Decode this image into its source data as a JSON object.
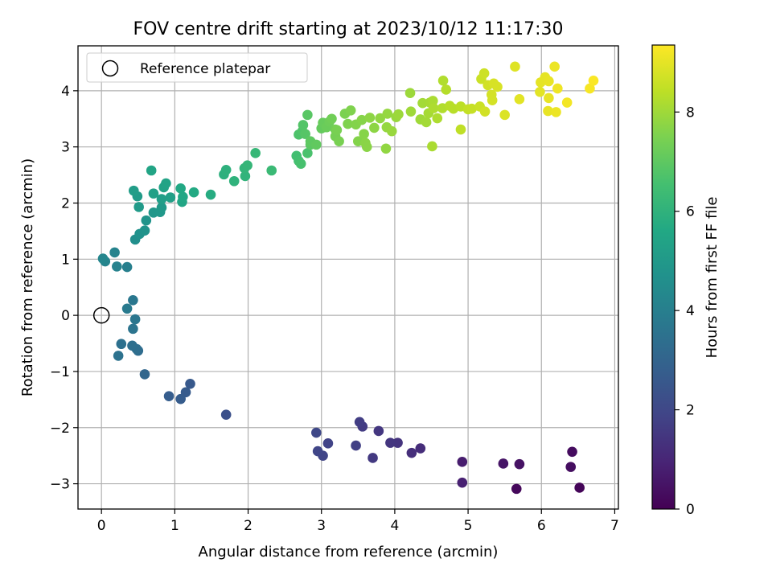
{
  "chart_data": {
    "type": "scatter",
    "title": "FOV centre drift starting at 2023/10/12 11:17:30",
    "xlabel": "Angular distance from reference (arcmin)",
    "ylabel": "Rotation from reference (arcmin)",
    "xlim": [
      -0.32,
      7.05
    ],
    "ylim": [
      -3.45,
      4.8
    ],
    "xticks": [
      0,
      1,
      2,
      3,
      4,
      5,
      6,
      7
    ],
    "yticks": [
      -3,
      -2,
      -1,
      0,
      1,
      2,
      3,
      4
    ],
    "grid": true,
    "legend": {
      "position": "top-left",
      "entries": [
        "Reference platepar"
      ]
    },
    "reference_point": {
      "x": 0,
      "y": 0
    },
    "colorbar": {
      "label": "Hours from first FF file",
      "range": [
        0,
        9.35
      ],
      "ticks": [
        0,
        2,
        4,
        6,
        8
      ],
      "colormap": "viridis"
    },
    "series": [
      {
        "points": [
          [
            6.52,
            -3.07,
            0.1
          ],
          [
            5.66,
            -3.09,
            0.2
          ],
          [
            6.42,
            -2.43,
            0.3
          ],
          [
            6.4,
            -2.7,
            0.35
          ],
          [
            5.7,
            -2.65,
            0.45
          ],
          [
            5.48,
            -2.64,
            0.5
          ],
          [
            4.92,
            -2.61,
            0.75
          ],
          [
            4.92,
            -2.98,
            0.85
          ],
          [
            4.35,
            -2.37,
            1.2
          ],
          [
            4.23,
            -2.45,
            1.25
          ],
          [
            4.04,
            -2.27,
            1.4
          ],
          [
            3.94,
            -2.27,
            1.45
          ],
          [
            3.78,
            -2.06,
            1.5
          ],
          [
            3.7,
            -2.54,
            1.55
          ],
          [
            3.56,
            -1.98,
            1.65
          ],
          [
            3.52,
            -1.9,
            1.7
          ],
          [
            3.47,
            -2.32,
            1.75
          ],
          [
            3.09,
            -2.28,
            1.85
          ],
          [
            3.02,
            -2.5,
            1.9
          ],
          [
            2.95,
            -2.42,
            1.95
          ],
          [
            2.93,
            -2.09,
            2.0
          ],
          [
            1.7,
            -1.77,
            2.3
          ],
          [
            1.21,
            -1.22,
            2.6
          ],
          [
            1.15,
            -1.37,
            2.65
          ],
          [
            1.08,
            -1.49,
            2.7
          ],
          [
            0.92,
            -1.44,
            2.75
          ],
          [
            0.59,
            -1.05,
            3.1
          ],
          [
            0.5,
            -0.63,
            3.3
          ],
          [
            0.48,
            -0.6,
            3.35
          ],
          [
            0.42,
            -0.54,
            3.4
          ],
          [
            0.27,
            -0.51,
            3.45
          ],
          [
            0.23,
            -0.72,
            3.5
          ],
          [
            0.43,
            -0.24,
            3.6
          ],
          [
            0.46,
            -0.07,
            3.65
          ],
          [
            0.43,
            0.27,
            3.7
          ],
          [
            0.35,
            0.12,
            3.8
          ],
          [
            0.35,
            0.86,
            4.0
          ],
          [
            0.21,
            0.87,
            4.1
          ],
          [
            0.18,
            1.12,
            4.15
          ],
          [
            0.05,
            0.96,
            4.2
          ],
          [
            0.02,
            1.01,
            4.25
          ],
          [
            0.46,
            1.35,
            4.6
          ],
          [
            0.52,
            1.45,
            4.7
          ],
          [
            0.59,
            1.51,
            4.75
          ],
          [
            0.61,
            1.69,
            4.8
          ],
          [
            0.71,
            1.83,
            4.9
          ],
          [
            0.8,
            1.84,
            4.95
          ],
          [
            0.82,
            1.92,
            5.0
          ],
          [
            0.51,
            1.93,
            5.05
          ],
          [
            0.49,
            2.12,
            5.1
          ],
          [
            0.44,
            2.22,
            5.15
          ],
          [
            0.82,
            2.07,
            5.2
          ],
          [
            0.94,
            2.1,
            5.25
          ],
          [
            0.71,
            2.17,
            5.3
          ],
          [
            0.85,
            2.28,
            5.35
          ],
          [
            0.88,
            2.35,
            5.4
          ],
          [
            0.68,
            2.58,
            5.45
          ],
          [
            1.1,
            2.02,
            5.5
          ],
          [
            1.11,
            2.11,
            5.55
          ],
          [
            1.08,
            2.26,
            5.6
          ],
          [
            1.26,
            2.19,
            5.65
          ],
          [
            1.49,
            2.15,
            5.75
          ],
          [
            1.67,
            2.51,
            5.9
          ],
          [
            1.7,
            2.59,
            5.95
          ],
          [
            1.81,
            2.39,
            6.0
          ],
          [
            1.96,
            2.48,
            6.05
          ],
          [
            1.95,
            2.62,
            6.1
          ],
          [
            1.99,
            2.67,
            6.15
          ],
          [
            2.1,
            2.89,
            6.2
          ],
          [
            2.32,
            2.58,
            6.3
          ],
          [
            2.66,
            2.84,
            6.5
          ],
          [
            2.69,
            2.75,
            6.55
          ],
          [
            2.72,
            2.7,
            6.6
          ],
          [
            2.81,
            2.89,
            6.65
          ],
          [
            2.69,
            3.22,
            6.7
          ],
          [
            2.74,
            3.28,
            6.75
          ],
          [
            2.75,
            3.39,
            6.8
          ],
          [
            2.78,
            3.23,
            6.85
          ],
          [
            2.81,
            3.57,
            6.9
          ],
          [
            2.85,
            3.04,
            6.95
          ],
          [
            2.85,
            3.1,
            7.0
          ],
          [
            2.93,
            3.04,
            7.05
          ],
          [
            3.0,
            3.33,
            7.1
          ],
          [
            3.02,
            3.43,
            7.15
          ],
          [
            3.07,
            3.35,
            7.2
          ],
          [
            3.11,
            3.45,
            7.25
          ],
          [
            3.14,
            3.5,
            7.3
          ],
          [
            3.19,
            3.31,
            7.35
          ],
          [
            3.19,
            3.19,
            7.4
          ],
          [
            3.24,
            3.1,
            7.45
          ],
          [
            3.21,
            3.3,
            7.45
          ],
          [
            3.32,
            3.59,
            7.5
          ],
          [
            3.4,
            3.65,
            7.55
          ],
          [
            3.36,
            3.41,
            7.55
          ],
          [
            3.47,
            3.4,
            7.6
          ],
          [
            3.5,
            3.1,
            7.6
          ],
          [
            3.55,
            3.48,
            7.65
          ],
          [
            3.58,
            3.23,
            7.65
          ],
          [
            3.6,
            3.07,
            7.7
          ],
          [
            3.62,
            3.0,
            7.7
          ],
          [
            3.66,
            3.52,
            7.75
          ],
          [
            3.72,
            3.34,
            7.75
          ],
          [
            3.8,
            3.51,
            7.8
          ],
          [
            3.88,
            2.97,
            7.8
          ],
          [
            3.9,
            3.59,
            7.85
          ],
          [
            3.89,
            3.35,
            7.85
          ],
          [
            3.96,
            3.28,
            7.9
          ],
          [
            4.02,
            3.53,
            7.9
          ],
          [
            4.05,
            3.58,
            7.95
          ],
          [
            4.21,
            3.96,
            7.95
          ],
          [
            4.22,
            3.63,
            8.0
          ],
          [
            4.35,
            3.49,
            8.0
          ],
          [
            4.38,
            3.78,
            8.05
          ],
          [
            4.43,
            3.44,
            8.05
          ],
          [
            4.46,
            3.6,
            8.1
          ],
          [
            4.48,
            3.79,
            8.1
          ],
          [
            4.51,
            3.01,
            8.15
          ],
          [
            4.52,
            3.82,
            8.15
          ],
          [
            4.53,
            3.69,
            8.2
          ],
          [
            4.58,
            3.51,
            8.2
          ],
          [
            4.65,
            3.69,
            8.25
          ],
          [
            4.66,
            4.18,
            8.25
          ],
          [
            4.7,
            4.02,
            8.3
          ],
          [
            4.75,
            3.73,
            8.35
          ],
          [
            4.8,
            3.68,
            8.35
          ],
          [
            4.9,
            3.72,
            8.4
          ],
          [
            4.9,
            3.31,
            8.45
          ],
          [
            5.0,
            3.67,
            8.5
          ],
          [
            5.05,
            3.68,
            8.55
          ],
          [
            5.16,
            3.72,
            8.6
          ],
          [
            5.18,
            4.21,
            8.6
          ],
          [
            5.22,
            4.31,
            8.65
          ],
          [
            5.23,
            3.63,
            8.7
          ],
          [
            5.27,
            4.1,
            8.7
          ],
          [
            5.32,
            3.93,
            8.75
          ],
          [
            5.33,
            3.83,
            8.75
          ],
          [
            5.35,
            4.13,
            8.8
          ],
          [
            5.4,
            4.07,
            8.8
          ],
          [
            5.5,
            3.57,
            8.85
          ],
          [
            5.64,
            4.43,
            8.9
          ],
          [
            5.7,
            3.85,
            8.95
          ],
          [
            5.98,
            3.98,
            8.95
          ],
          [
            5.99,
            4.15,
            9.0
          ],
          [
            6.05,
            4.24,
            9.0
          ],
          [
            6.1,
            4.17,
            9.05
          ],
          [
            6.1,
            3.87,
            9.05
          ],
          [
            6.09,
            3.64,
            9.05
          ],
          [
            6.18,
            4.43,
            9.1
          ],
          [
            6.2,
            3.62,
            9.1
          ],
          [
            6.22,
            4.04,
            9.15
          ],
          [
            6.35,
            3.79,
            9.2
          ],
          [
            6.66,
            4.04,
            9.25
          ],
          [
            6.71,
            4.18,
            9.3
          ]
        ]
      }
    ]
  }
}
